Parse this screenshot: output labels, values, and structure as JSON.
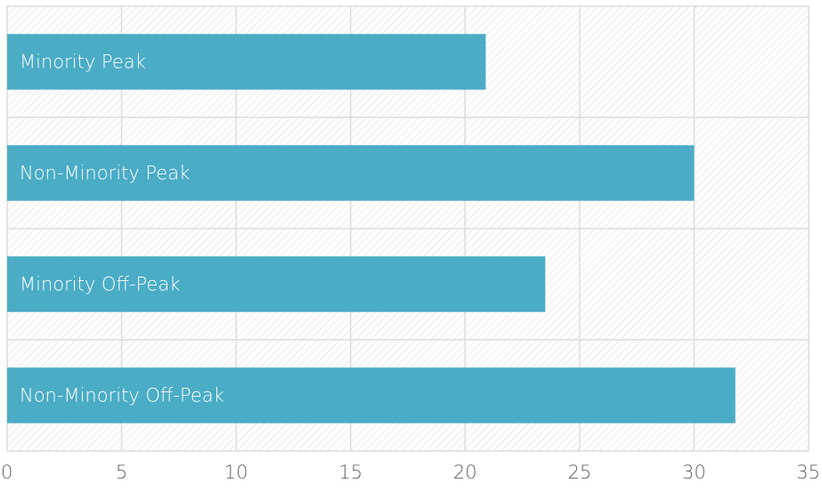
{
  "chart_data": {
    "type": "bar",
    "orientation": "horizontal",
    "categories": [
      "Minority Peak",
      "Non-Minority Peak",
      "Minority Off-Peak",
      "Non-Minority Off-Peak"
    ],
    "values": [
      20.9,
      30.0,
      23.5,
      31.8
    ],
    "title": "",
    "xlabel": "",
    "ylabel": "",
    "xlim": [
      0,
      35
    ],
    "xticks": [
      "0",
      "5",
      "10",
      "15",
      "20",
      "25",
      "30",
      "35"
    ],
    "grid": true,
    "legend": "none",
    "labels_inside_bars": true,
    "colors": {
      "bar": "#4bacc6",
      "grid": "#dcdcdc",
      "hatch": "#d6d6d6",
      "tick_text": "#5f6368",
      "bar_text": "#ffffff"
    }
  }
}
